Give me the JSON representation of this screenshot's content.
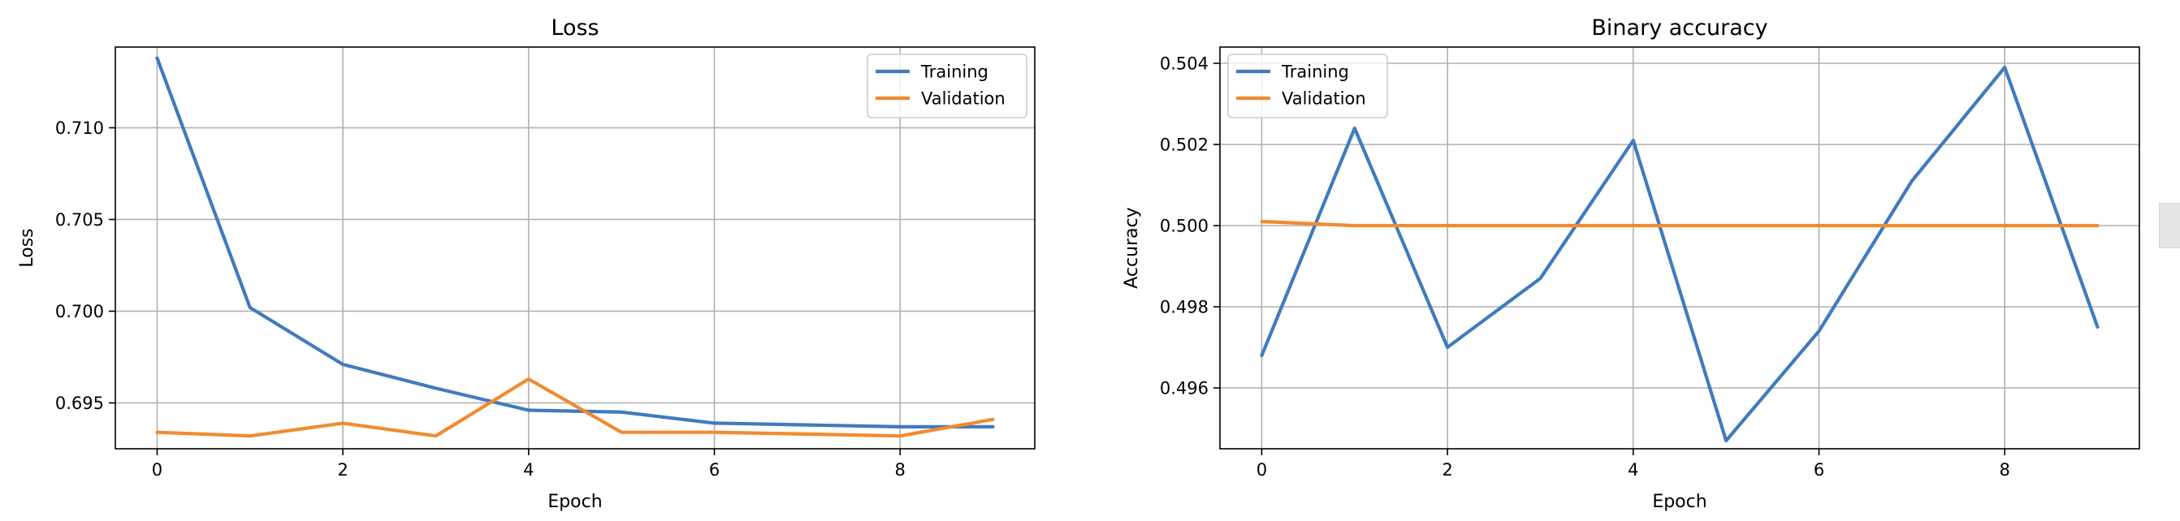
{
  "chart_data": [
    {
      "type": "line",
      "title": "Loss",
      "xlabel": "Epoch",
      "ylabel": "Loss",
      "x": [
        0,
        1,
        2,
        3,
        4,
        5,
        6,
        7,
        8,
        9
      ],
      "xlim": [
        -0.45,
        9.45
      ],
      "ylim": [
        0.6925,
        0.7144
      ],
      "xticks": [
        0,
        2,
        4,
        6,
        8
      ],
      "xtick_labels": [
        "0",
        "2",
        "4",
        "6",
        "8"
      ],
      "yticks": [
        0.695,
        0.7,
        0.705,
        0.71
      ],
      "ytick_labels": [
        "0.695",
        "0.700",
        "0.705",
        "0.710"
      ],
      "grid": true,
      "legend_position": "top-right",
      "series": [
        {
          "name": "Training",
          "color": "#3f7bbd",
          "values": [
            0.7138,
            0.7002,
            0.6971,
            0.6958,
            0.6946,
            0.6945,
            0.6939,
            0.6938,
            0.6937,
            0.6937
          ]
        },
        {
          "name": "Validation",
          "color": "#f28a30",
          "values": [
            0.6934,
            0.6932,
            0.6939,
            0.6932,
            0.6963,
            0.6934,
            0.6934,
            0.6933,
            0.6932,
            0.6941
          ]
        }
      ]
    },
    {
      "type": "line",
      "title": "Binary accuracy",
      "xlabel": "Epoch",
      "ylabel": "Accuracy",
      "x": [
        0,
        1,
        2,
        3,
        4,
        5,
        6,
        7,
        8,
        9
      ],
      "xlim": [
        -0.45,
        9.45
      ],
      "ylim": [
        0.4945,
        0.5044
      ],
      "xticks": [
        0,
        2,
        4,
        6,
        8
      ],
      "xtick_labels": [
        "0",
        "2",
        "4",
        "6",
        "8"
      ],
      "yticks": [
        0.496,
        0.498,
        0.5,
        0.502,
        0.504
      ],
      "ytick_labels": [
        "0.496",
        "0.498",
        "0.500",
        "0.502",
        "0.504"
      ],
      "grid": true,
      "legend_position": "top-left",
      "series": [
        {
          "name": "Training",
          "color": "#3f7bbd",
          "values": [
            0.4968,
            0.5024,
            0.497,
            0.4987,
            0.5021,
            0.4947,
            0.4974,
            0.5011,
            0.5039,
            0.4975
          ]
        },
        {
          "name": "Validation",
          "color": "#f28a30",
          "values": [
            0.5001,
            0.5,
            0.5,
            0.5,
            0.5,
            0.5,
            0.5,
            0.5,
            0.5,
            0.5
          ]
        }
      ]
    }
  ]
}
